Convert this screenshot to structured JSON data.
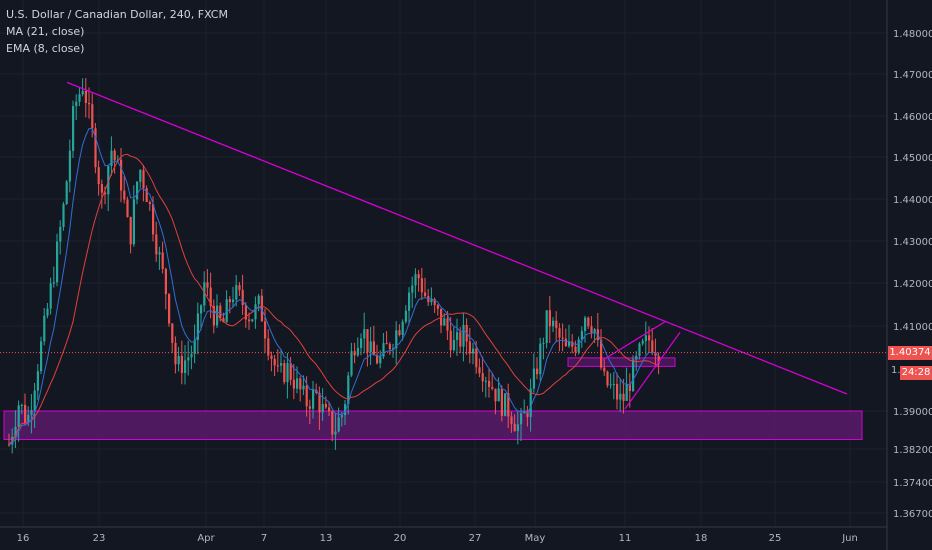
{
  "legend": {
    "line1": "U.S. Dollar / Canadian Dollar, 240, FXCM",
    "line2": "MA (21, close)",
    "line3": "EMA (8, close)"
  },
  "price_tags": {
    "last_price": "1.40374",
    "countdown": "24:28",
    "partial_label": "1."
  },
  "colors": {
    "background": "#131722",
    "up": "#26a69a",
    "down": "#ef5350",
    "ma": "#e0413a",
    "ema": "#2e6fd6",
    "annotation": "#d600d6",
    "zone_fill": "#5a1a6a",
    "price_line": "#ef5350"
  },
  "chart_data": {
    "type": "candlestick",
    "symbol": "U.S. Dollar / Canadian Dollar",
    "timeframe": "240",
    "source": "FXCM",
    "indicators": [
      "MA (21, close)",
      "EMA (8, close)"
    ],
    "y_axis": {
      "range": [
        1.367,
        1.485
      ],
      "ticks": [
        "1.48000",
        "1.47000",
        "1.46000",
        "1.45000",
        "1.44000",
        "1.43000",
        "1.42000",
        "1.41000",
        "1.39000",
        "1.38200",
        "1.37400",
        "1.36700"
      ]
    },
    "x_axis": {
      "ticks": [
        "16",
        "23",
        "Apr",
        "7",
        "13",
        "20",
        "27",
        "May",
        "11",
        "18",
        "25",
        "Jun"
      ]
    },
    "last_price": 1.40374,
    "price_path": [
      [
        0,
        1.383
      ],
      [
        1,
        1.392
      ],
      [
        2,
        1.388
      ],
      [
        3,
        1.4
      ],
      [
        4,
        1.412
      ],
      [
        5,
        1.425
      ],
      [
        6,
        1.44
      ],
      [
        7,
        1.462
      ],
      [
        8,
        1.468
      ],
      [
        9,
        1.455
      ],
      [
        10,
        1.44
      ],
      [
        11,
        1.452
      ],
      [
        12,
        1.445
      ],
      [
        13,
        1.43
      ],
      [
        14,
        1.448
      ],
      [
        15,
        1.44
      ],
      [
        16,
        1.428
      ],
      [
        17,
        1.417
      ],
      [
        18,
        1.4
      ],
      [
        19,
        1.402
      ],
      [
        20,
        1.405
      ],
      [
        21,
        1.42
      ],
      [
        22,
        1.413
      ],
      [
        23,
        1.41
      ],
      [
        24,
        1.418
      ],
      [
        25,
        1.416
      ],
      [
        26,
        1.412
      ],
      [
        27,
        1.415
      ],
      [
        28,
        1.405
      ],
      [
        29,
        1.398
      ],
      [
        30,
        1.4
      ],
      [
        31,
        1.396
      ],
      [
        32,
        1.392
      ],
      [
        33,
        1.394
      ],
      [
        34,
        1.389
      ],
      [
        35,
        1.386
      ],
      [
        36,
        1.39
      ],
      [
        37,
        1.405
      ],
      [
        38,
        1.41
      ],
      [
        39,
        1.403
      ],
      [
        40,
        1.402
      ],
      [
        41,
        1.406
      ],
      [
        42,
        1.41
      ],
      [
        43,
        1.418
      ],
      [
        44,
        1.422
      ],
      [
        45,
        1.416
      ],
      [
        46,
        1.413
      ],
      [
        47,
        1.41
      ],
      [
        48,
        1.405
      ],
      [
        49,
        1.408
      ],
      [
        50,
        1.404
      ],
      [
        51,
        1.4
      ],
      [
        52,
        1.396
      ],
      [
        53,
        1.392
      ],
      [
        54,
        1.39
      ],
      [
        55,
        1.386
      ],
      [
        56,
        1.392
      ],
      [
        57,
        1.402
      ],
      [
        58,
        1.412
      ],
      [
        59,
        1.408
      ],
      [
        60,
        1.404
      ],
      [
        61,
        1.406
      ],
      [
        62,
        1.413
      ],
      [
        63,
        1.41
      ],
      [
        64,
        1.397
      ],
      [
        65,
        1.395
      ],
      [
        66,
        1.392
      ],
      [
        67,
        1.398
      ],
      [
        68,
        1.404
      ],
      [
        69,
        1.407
      ],
      [
        70,
        1.404
      ]
    ],
    "annotations": [
      {
        "type": "trendline",
        "from": {
          "date": "Mar 19",
          "price": 1.468
        },
        "to": {
          "date": "Jun",
          "price": 1.394
        }
      },
      {
        "type": "zone",
        "price_range": [
          1.384,
          1.39
        ]
      },
      {
        "type": "zone",
        "price_range": [
          1.4005,
          1.4025
        ]
      },
      {
        "type": "wedge",
        "upper": [
          1.402,
          1.411
        ],
        "lower": [
          1.3905,
          1.4085
        ]
      }
    ]
  }
}
